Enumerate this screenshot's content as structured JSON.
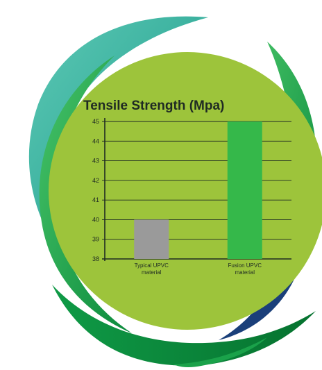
{
  "chart_data": {
    "type": "bar",
    "title": "Tensile Strength (Mpa)",
    "xlabel": "",
    "ylabel": "",
    "categories": [
      [
        "Typical UPVC",
        "material"
      ],
      [
        "Fusion UPVC",
        "material"
      ]
    ],
    "values": [
      40,
      45
    ],
    "bar_colors": [
      "#9a9a9a",
      "#35b84a"
    ],
    "ylim": [
      38,
      45
    ],
    "yticks": [
      38,
      39,
      40,
      41,
      42,
      43,
      44,
      45
    ],
    "grid": true,
    "legend": "none"
  },
  "colors": {
    "disc": "#9dc43b",
    "swoosh_dark": "#0a8a3c",
    "swoosh_mid": "#1aa24a",
    "swoosh_light": "#40c06a",
    "teal": "#2ea598",
    "navy": "#1a3f7a",
    "axis": "#1f2a23"
  }
}
